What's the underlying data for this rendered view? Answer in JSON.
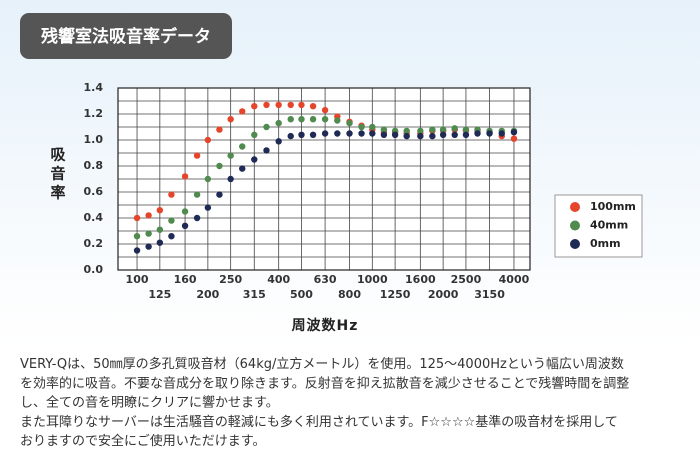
{
  "header": {
    "title": "残響室法吸音率データ"
  },
  "chart_data": {
    "type": "scatter",
    "x_label": "周波数Hz",
    "y_label": "吸音率",
    "x_scale": "log",
    "xlim": [
      83,
      4680
    ],
    "ylim": [
      0,
      1.4
    ],
    "xticks": [
      100,
      125,
      160,
      200,
      250,
      315,
      400,
      500,
      630,
      800,
      1000,
      1250,
      1600,
      2000,
      2500,
      3150,
      4000
    ],
    "yticks": [
      {
        "value": 0,
        "label": "0.0"
      },
      {
        "value": 0.2,
        "label": "0.2"
      },
      {
        "value": 0.4,
        "label": "0.4"
      },
      {
        "value": 0.6,
        "label": "0.6"
      },
      {
        "value": 0.8,
        "label": "0.8"
      },
      {
        "value": 1.0,
        "label": "1.0"
      },
      {
        "value": 1.2,
        "label": "1.2"
      },
      {
        "value": 1.4,
        "label": "1.4"
      }
    ],
    "yminorticks": [
      0.1,
      0.3,
      0.5,
      0.7,
      0.9,
      1.1,
      1.3
    ],
    "grid": true,
    "legend": "right",
    "x": [
      100,
      112,
      125,
      140,
      160,
      180,
      200,
      224,
      250,
      280,
      315,
      355,
      400,
      450,
      500,
      560,
      630,
      710,
      800,
      900,
      1000,
      1120,
      1250,
      1400,
      1600,
      1800,
      2000,
      2240,
      2500,
      2800,
      3150,
      3550,
      4000
    ],
    "series": [
      {
        "name": "100mm",
        "color": "#e5452b",
        "values": [
          0.4,
          0.42,
          0.46,
          0.58,
          0.72,
          0.88,
          1.0,
          1.08,
          1.16,
          1.22,
          1.26,
          1.27,
          1.27,
          1.27,
          1.27,
          1.26,
          1.23,
          1.18,
          1.14,
          1.11,
          1.08,
          1.06,
          1.06,
          1.05,
          1.05,
          1.07,
          1.07,
          1.08,
          1.07,
          1.07,
          1.06,
          1.03,
          1.01
        ]
      },
      {
        "name": "40mm",
        "color": "#4f8a4e",
        "values": [
          0.26,
          0.28,
          0.31,
          0.38,
          0.45,
          0.58,
          0.7,
          0.8,
          0.88,
          0.95,
          1.04,
          1.1,
          1.13,
          1.16,
          1.16,
          1.16,
          1.16,
          1.15,
          1.13,
          1.1,
          1.1,
          1.08,
          1.07,
          1.07,
          1.07,
          1.08,
          1.08,
          1.09,
          1.08,
          1.08,
          1.07,
          1.07,
          1.07
        ]
      },
      {
        "name": "0mm",
        "color": "#1f2a55",
        "values": [
          0.15,
          0.18,
          0.21,
          0.26,
          0.34,
          0.4,
          0.48,
          0.58,
          0.7,
          0.78,
          0.85,
          0.92,
          0.99,
          1.03,
          1.04,
          1.04,
          1.05,
          1.05,
          1.05,
          1.05,
          1.05,
          1.04,
          1.04,
          1.03,
          1.03,
          1.03,
          1.04,
          1.04,
          1.04,
          1.05,
          1.05,
          1.05,
          1.06
        ]
      }
    ]
  },
  "description": {
    "lines": [
      "VERY-Qは、50㎜厚の多孔質吸音材（64kg/立方メートル）を使用。125～4000Hzという幅広い周波数",
      "を効率的に吸音。不要な音成分を取り除きます。反射音を抑え拡散音を減少させることで残響時間を調整",
      "し、全ての音を明瞭にクリアに響かせます。",
      "また耳障りなサーバーは生活騒音の軽減にも多く利用されています。F☆☆☆☆基準の吸音材を採用して",
      "おりますので安全にご使用いただけます。"
    ]
  }
}
